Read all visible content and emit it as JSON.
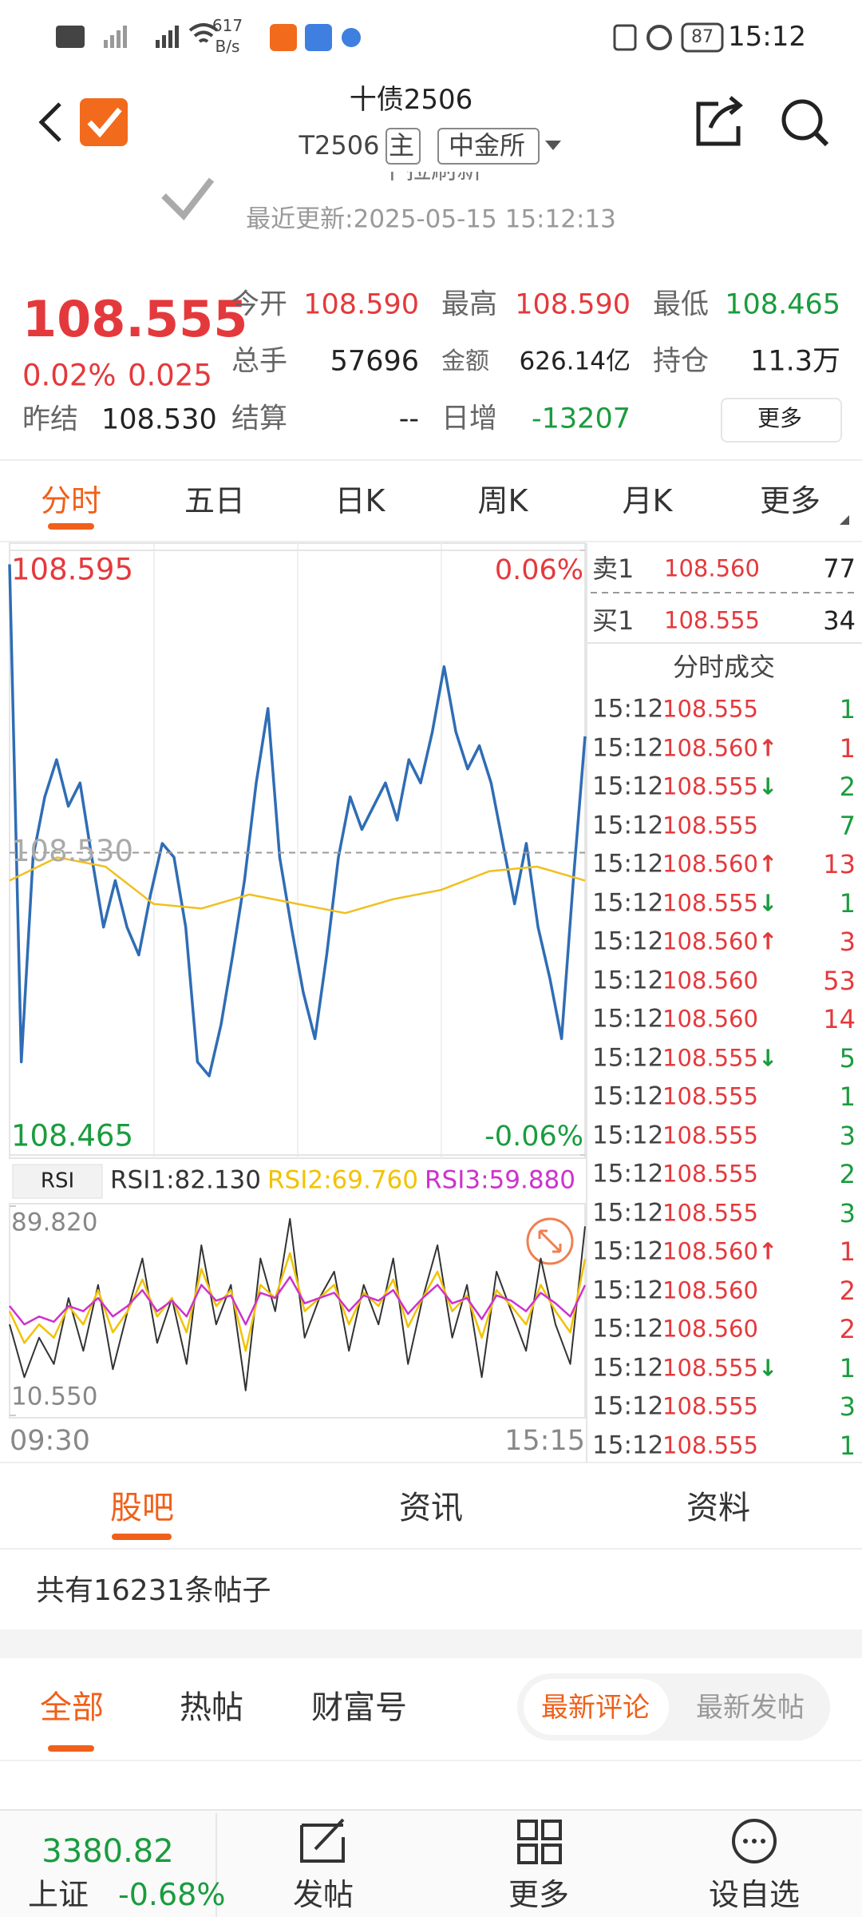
{
  "status_bar": {
    "net_speed": "617",
    "net_unit": "B/s",
    "battery": "87",
    "time": "15:12"
  },
  "header": {
    "title": "十债2506",
    "code": "T2506",
    "tag": "主",
    "exchange": "中金所"
  },
  "refresh": {
    "hint": "下拉刷新",
    "updated": "最近更新:2025-05-15 15:12:13"
  },
  "quote": {
    "price": "108.555",
    "change_pct": "0.02%",
    "change": "0.025",
    "prev_label": "昨结",
    "prev": "108.530",
    "fields": [
      [
        {
          "label": "今开",
          "value": "108.590",
          "color": "#e4393c"
        },
        {
          "label": "最高",
          "value": "108.590",
          "color": "#e4393c"
        },
        {
          "label": "最低",
          "value": "108.465",
          "color": "#1a9c3e"
        }
      ],
      [
        {
          "label": "总手",
          "value": "57696",
          "color": "#222222"
        },
        {
          "label": "金额",
          "value": "626.14亿",
          "color": "#222222"
        },
        {
          "label": "持仓",
          "value": "11.3万",
          "color": "#222222"
        }
      ],
      [
        {
          "label": "结算",
          "value": "--",
          "color": "#222222"
        },
        {
          "label": "日增",
          "value": "-13207",
          "color": "#1a9c3e"
        }
      ]
    ],
    "more": "更多"
  },
  "tabs": {
    "items": [
      "分时",
      "五日",
      "日K",
      "周K",
      "月K",
      "更多"
    ],
    "active": 0
  },
  "chart": {
    "type": "line",
    "ylim": [
      108.465,
      108.595
    ],
    "yticks": [
      108.465,
      {
        "value": 108.53,
        "label": "108.530"
      },
      108.595
    ],
    "y2lim": [
      -0.06,
      0.06
    ],
    "y2ticks": [
      {
        "value": -0.06,
        "label": "-0.06%"
      },
      {
        "value": 0.06,
        "label": "0.06%"
      }
    ],
    "x_labels": [
      "09:30",
      "15:15"
    ],
    "series": [
      {
        "color": "#2f6db5",
        "values": [
          108.592,
          108.485,
          108.529,
          108.542,
          108.55,
          108.54,
          108.545,
          108.529,
          108.514,
          108.524,
          108.514,
          108.508,
          108.521,
          108.532,
          108.529,
          108.514,
          108.485,
          108.482,
          108.493,
          108.508,
          108.524,
          108.545,
          108.561,
          108.529,
          108.514,
          108.5,
          108.49,
          108.508,
          108.529,
          108.542,
          108.535,
          108.54,
          108.545,
          108.537,
          108.55,
          108.545,
          108.556,
          108.57,
          108.556,
          108.548,
          108.553,
          108.545,
          108.532,
          108.519,
          108.532,
          108.514,
          108.503,
          108.49,
          108.524,
          108.555
        ]
      },
      {
        "color": "#f0c020",
        "values": [
          108.524,
          108.529,
          108.527,
          108.519,
          108.518,
          108.521,
          108.519,
          108.517,
          108.52,
          108.522,
          108.526,
          108.527,
          108.524
        ]
      }
    ]
  },
  "rsi": {
    "type": "line",
    "label": "RSI",
    "ylim": [
      10.55,
      89.82
    ],
    "yticks": [
      {
        "value": 10.55,
        "label": "10.550"
      },
      {
        "value": 89.82,
        "label": "89.820"
      }
    ],
    "series": [
      {
        "name": "RSI1:82.130",
        "color": "#333333",
        "values": [
          45,
          25,
          40,
          30,
          55,
          35,
          60,
          28,
          50,
          70,
          38,
          55,
          30,
          75,
          45,
          60,
          20,
          70,
          50,
          85,
          40,
          55,
          65,
          35,
          60,
          45,
          70,
          30,
          55,
          75,
          40,
          60,
          25,
          65,
          50,
          35,
          70,
          45,
          30,
          82.13
        ]
      },
      {
        "name": "RSI2:69.760",
        "color": "#f2c200",
        "values": [
          50,
          38,
          45,
          40,
          52,
          45,
          58,
          42,
          50,
          62,
          48,
          55,
          42,
          66,
          52,
          58,
          35,
          60,
          55,
          72,
          50,
          55,
          60,
          45,
          57,
          52,
          62,
          44,
          55,
          65,
          50,
          56,
          40,
          58,
          52,
          45,
          60,
          50,
          42,
          69.76
        ]
      },
      {
        "name": "RSI3:59.880",
        "color": "#cc33cc",
        "values": [
          52,
          45,
          48,
          46,
          52,
          50,
          55,
          48,
          52,
          58,
          50,
          54,
          48,
          60,
          54,
          56,
          45,
          57,
          55,
          63,
          53,
          55,
          57,
          50,
          56,
          54,
          58,
          49,
          55,
          60,
          53,
          55,
          47,
          56,
          54,
          50,
          57,
          53,
          48,
          59.88
        ]
      }
    ]
  },
  "order_book": [
    {
      "side": "卖1",
      "price": "108.560",
      "volume": "77"
    },
    {
      "side": "买1",
      "price": "108.555",
      "volume": "34"
    }
  ],
  "trades": {
    "title": "分时成交",
    "rows": [
      {
        "time": "15:12",
        "price": "108.555",
        "volume": "1",
        "color": "#1a9c3e"
      },
      {
        "time": "15:12",
        "price": "108.560",
        "arrow": "↑",
        "volume": "1",
        "color": "#e4393c"
      },
      {
        "time": "15:12",
        "price": "108.555",
        "arrow": "↓",
        "volume": "2",
        "color": "#1a9c3e"
      },
      {
        "time": "15:12",
        "price": "108.555",
        "volume": "7",
        "color": "#1a9c3e"
      },
      {
        "time": "15:12",
        "price": "108.560",
        "arrow": "↑",
        "volume": "13",
        "color": "#e4393c"
      },
      {
        "time": "15:12",
        "price": "108.555",
        "arrow": "↓",
        "volume": "1",
        "color": "#1a9c3e"
      },
      {
        "time": "15:12",
        "price": "108.560",
        "arrow": "↑",
        "volume": "3",
        "color": "#e4393c"
      },
      {
        "time": "15:12",
        "price": "108.560",
        "volume": "53",
        "color": "#e4393c"
      },
      {
        "time": "15:12",
        "price": "108.560",
        "volume": "14",
        "color": "#e4393c"
      },
      {
        "time": "15:12",
        "price": "108.555",
        "arrow": "↓",
        "volume": "5",
        "color": "#1a9c3e"
      },
      {
        "time": "15:12",
        "price": "108.555",
        "volume": "1",
        "color": "#1a9c3e"
      },
      {
        "time": "15:12",
        "price": "108.555",
        "volume": "3",
        "color": "#1a9c3e"
      },
      {
        "time": "15:12",
        "price": "108.555",
        "volume": "2",
        "color": "#1a9c3e"
      },
      {
        "time": "15:12",
        "price": "108.555",
        "volume": "3",
        "color": "#1a9c3e"
      },
      {
        "time": "15:12",
        "price": "108.560",
        "arrow": "↑",
        "volume": "1",
        "color": "#e4393c"
      },
      {
        "time": "15:12",
        "price": "108.560",
        "volume": "2",
        "color": "#e4393c"
      },
      {
        "time": "15:12",
        "price": "108.560",
        "volume": "2",
        "color": "#e4393c"
      },
      {
        "time": "15:12",
        "price": "108.555",
        "arrow": "↓",
        "volume": "1",
        "color": "#1a9c3e"
      },
      {
        "time": "15:12",
        "price": "108.555",
        "volume": "3",
        "color": "#1a9c3e"
      },
      {
        "time": "15:12",
        "price": "108.555",
        "volume": "1",
        "color": "#1a9c3e"
      }
    ]
  },
  "sections": {
    "tabs": [
      "股吧",
      "资讯",
      "资料"
    ],
    "post_count": "共有16231条帖子",
    "filters": [
      "全部",
      "热帖",
      "财富号"
    ],
    "sort": [
      "最新评论",
      "最新发帖"
    ]
  },
  "bottom_bar": {
    "index_value": "3380.82",
    "index_name": "上证",
    "index_change": "-0.68%",
    "buttons": [
      "发帖",
      "更多",
      "设自选"
    ]
  }
}
